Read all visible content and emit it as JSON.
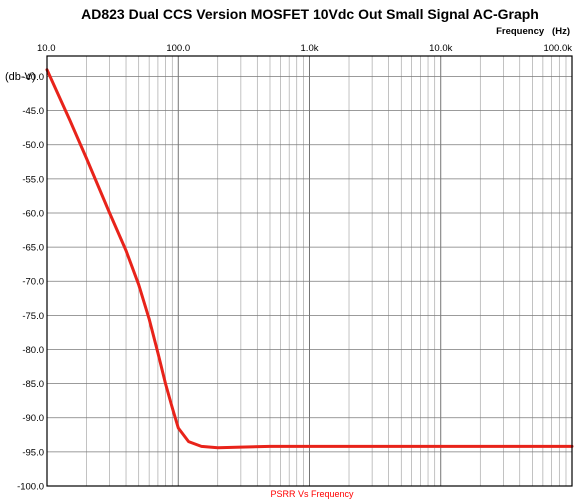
{
  "chart_data": {
    "type": "line",
    "title": "AD823 Dual CCS Version MOSFET 10Vdc Out Small Signal AC-Graph",
    "subtitle": "Frequency   (Hz)",
    "ylabel": "(db-V)",
    "caption": "PSRR Vs Frequency",
    "x_scale": "log",
    "xlim": [
      10,
      100000
    ],
    "ylim": [
      -100,
      -37
    ],
    "x_ticks": [
      {
        "value": 10,
        "label": "10.0"
      },
      {
        "value": 100,
        "label": "100.0"
      },
      {
        "value": 1000,
        "label": "1.0k"
      },
      {
        "value": 10000,
        "label": "10.0k"
      },
      {
        "value": 100000,
        "label": "100.0k"
      }
    ],
    "y_ticks": [
      {
        "value": -40,
        "label": "-40.0"
      },
      {
        "value": -45,
        "label": "-45.0"
      },
      {
        "value": -50,
        "label": "-50.0"
      },
      {
        "value": -55,
        "label": "-55.0"
      },
      {
        "value": -60,
        "label": "-60.0"
      },
      {
        "value": -65,
        "label": "-65.0"
      },
      {
        "value": -70,
        "label": "-70.0"
      },
      {
        "value": -75,
        "label": "-75.0"
      },
      {
        "value": -80,
        "label": "-80.0"
      },
      {
        "value": -85,
        "label": "-85.0"
      },
      {
        "value": -90,
        "label": "-90.0"
      },
      {
        "value": -95,
        "label": "-95.0"
      },
      {
        "value": -100,
        "label": "-100.0"
      }
    ],
    "grid": true,
    "series": [
      {
        "color": "#e8231a",
        "x": [
          10,
          15,
          20,
          30,
          40,
          50,
          60,
          70,
          80,
          90,
          100,
          120,
          150,
          200,
          300,
          500,
          1000,
          10000,
          100000
        ],
        "y": [
          -39.0,
          -46.5,
          -52.0,
          -60.0,
          -65.5,
          -70.5,
          -75.5,
          -80.5,
          -85.0,
          -88.5,
          -91.5,
          -93.5,
          -94.2,
          -94.4,
          -94.3,
          -94.2,
          -94.2,
          -94.2,
          -94.2
        ]
      }
    ]
  }
}
